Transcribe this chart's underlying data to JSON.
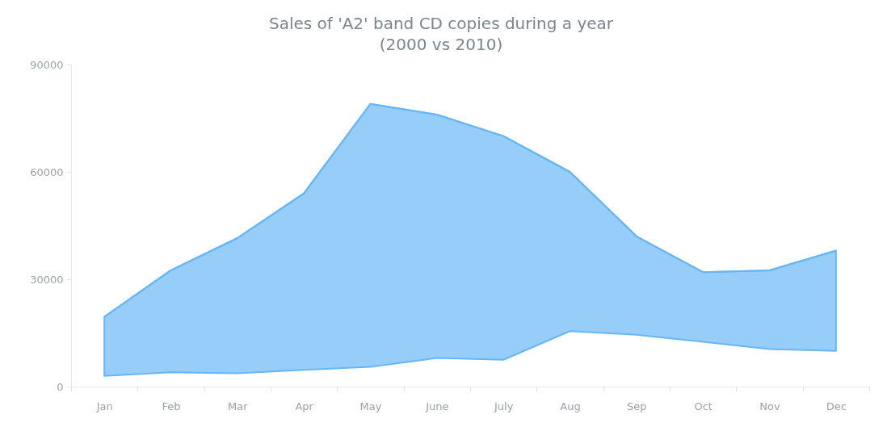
{
  "chart_data": {
    "type": "line",
    "title": "Sales of 'A2' band CD copies during a year",
    "subtitle": "(2000 vs 2010)",
    "categories": [
      "Jan",
      "Feb",
      "Mar",
      "Apr",
      "May",
      "June",
      "July",
      "Aug",
      "Sep",
      "Oct",
      "Nov",
      "Dec"
    ],
    "series": [
      {
        "color": "#66b6f6",
        "values": [
          19500,
          32500,
          41500,
          54000,
          79000,
          76000,
          70000,
          60000,
          42000,
          32000,
          32500,
          38000
        ],
        "lower": [
          3000,
          4000,
          3700,
          4700,
          5500,
          8000,
          7500,
          15500,
          14500,
          12500,
          10500,
          10000
        ],
        "upper": [
          19500,
          32500,
          41500,
          54000,
          79000,
          76000,
          70000,
          60000,
          42000,
          32000,
          32500,
          38000
        ]
      }
    ],
    "ylim": [
      0,
      90000
    ],
    "yticks": [
      0,
      30000,
      60000,
      90000
    ]
  }
}
